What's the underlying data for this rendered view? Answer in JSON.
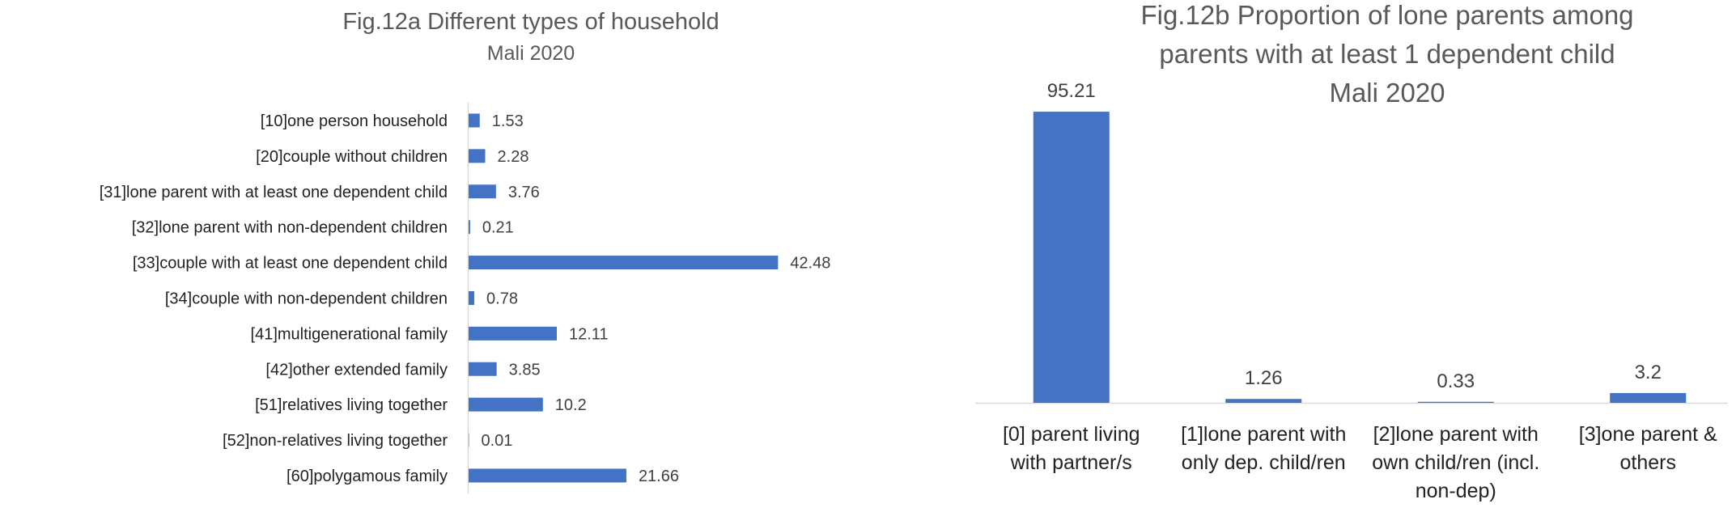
{
  "chart_data": [
    {
      "type": "bar",
      "orientation": "horizontal",
      "title": "Fig.12a Different types of household",
      "subtitle": "Mali 2020",
      "xlabel": "",
      "ylabel": "",
      "categories": [
        "[10]one person household",
        "[20]couple without children",
        "[31]lone parent with at least one dependent child",
        "[32]lone parent with non-dependent children",
        "[33]couple with at least one dependent child",
        "[34]couple with non-dependent children",
        "[41]multigenerational family",
        "[42]other extended family",
        "[51]relatives living together",
        "[52]non-relatives living together",
        "[60]polygamous family"
      ],
      "values": [
        1.53,
        2.28,
        3.76,
        0.21,
        42.48,
        0.78,
        12.11,
        3.85,
        10.2,
        0.01,
        21.66
      ],
      "value_labels": [
        "1.53",
        "2.28",
        "3.76",
        "0.21",
        "42.48",
        "0.78",
        "12.11",
        "3.85",
        "10.2",
        "0.01",
        "21.66"
      ],
      "xlim": [
        0,
        50
      ],
      "grid": false,
      "legend": "none",
      "color": "#4472C4"
    },
    {
      "type": "bar",
      "orientation": "vertical",
      "title": "Fig.12b Proportion of lone parents among",
      "title_line2": "parents with at least 1 dependent child",
      "subtitle": "Mali 2020",
      "xlabel": "",
      "ylabel": "",
      "categories": [
        [
          "[0] parent living",
          "with partner/s"
        ],
        [
          "[1]lone parent with",
          "only dep. child/ren"
        ],
        [
          "[2]lone parent with",
          "own child/ren (incl.",
          "non-dep)"
        ],
        [
          "[3]one parent &",
          "others"
        ]
      ],
      "values": [
        95.21,
        1.26,
        0.33,
        3.2
      ],
      "value_labels": [
        "95.21",
        "1.26",
        "0.33",
        "3.2"
      ],
      "ylim": [
        0,
        100
      ],
      "grid": false,
      "legend": "none",
      "color": "#4472C4"
    }
  ]
}
